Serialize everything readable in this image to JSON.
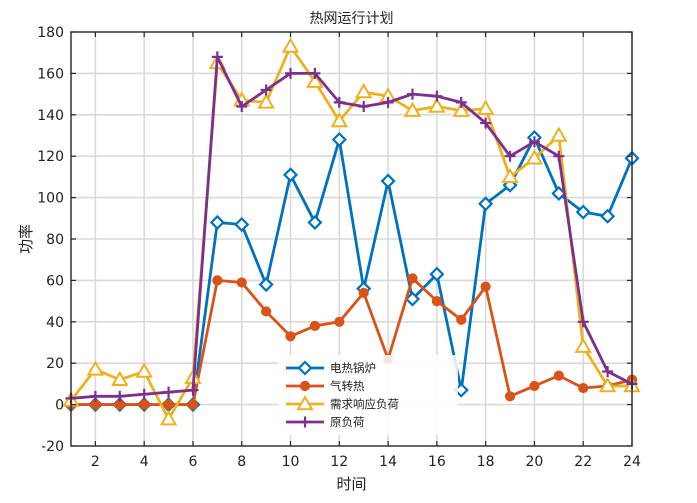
{
  "chart_data": {
    "type": "line",
    "title": "热网运行计划",
    "xlabel": "时间",
    "ylabel": "功率",
    "xlim": [
      1,
      24
    ],
    "ylim": [
      -20,
      180
    ],
    "xticks": [
      2,
      4,
      6,
      8,
      10,
      12,
      14,
      16,
      18,
      20,
      22,
      24
    ],
    "yticks": [
      -20,
      0,
      20,
      40,
      60,
      80,
      100,
      120,
      140,
      160,
      180
    ],
    "grid": true,
    "legend_position": "lower-center",
    "x": [
      1,
      2,
      3,
      4,
      5,
      6,
      7,
      8,
      9,
      10,
      11,
      12,
      13,
      14,
      15,
      16,
      17,
      18,
      19,
      20,
      21,
      22,
      23,
      24
    ],
    "series": [
      {
        "name": "电热锅炉",
        "color": "#0072BD",
        "marker": "diamond",
        "values": [
          0,
          0,
          0,
          0,
          0,
          0,
          88,
          87,
          58,
          111,
          88,
          128,
          56,
          108,
          51,
          63,
          7,
          97,
          106,
          129,
          102,
          93,
          91,
          119
        ]
      },
      {
        "name": "气转热",
        "color": "#D95319",
        "marker": "circle",
        "values": [
          0,
          0,
          0,
          0,
          0,
          0,
          60,
          59,
          45,
          33,
          38,
          40,
          54,
          22,
          61,
          50,
          41,
          57,
          4,
          9,
          14,
          8,
          9,
          12
        ]
      },
      {
        "name": "需求响应负荷",
        "color": "#EDB120",
        "marker": "triangle",
        "values": [
          2,
          17,
          12,
          16,
          -7,
          13,
          165,
          147,
          146,
          173,
          156,
          137,
          151,
          149,
          142,
          144,
          142,
          143,
          110,
          119,
          130,
          28,
          9,
          9
        ]
      },
      {
        "name": "原负荷",
        "color": "#7E2F8E",
        "marker": "plus",
        "values": [
          3,
          4,
          4,
          5,
          6,
          7,
          168,
          144,
          152,
          160,
          160,
          146,
          144,
          146,
          150,
          149,
          146,
          136,
          120,
          127,
          120,
          40,
          16,
          10
        ]
      }
    ]
  }
}
